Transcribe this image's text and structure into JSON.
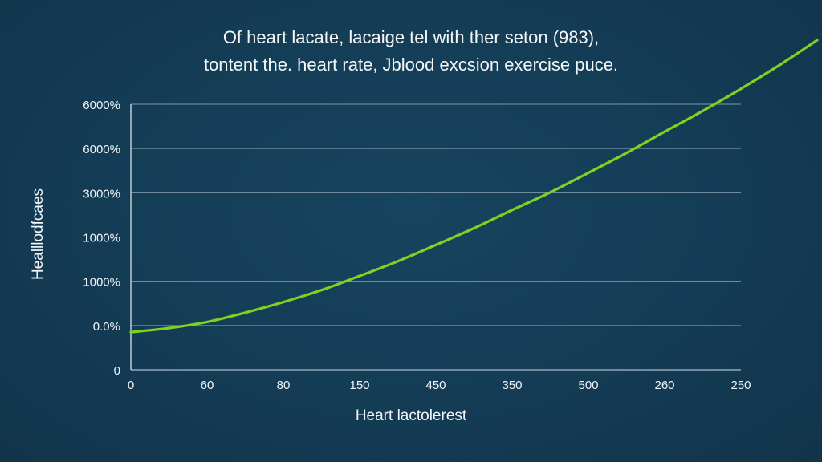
{
  "chart_data": {
    "type": "line",
    "title_lines": [
      "Of heart lacate, lacaige tel with ther seton (983),",
      "tontent the. heart rate, Jblood excsion exercise puce."
    ],
    "xlabel": "Heart lactolerest",
    "ylabel": "Healllodfcaes",
    "x_tick_labels": [
      "0",
      "60",
      "80",
      "150",
      "450",
      "350",
      "500",
      "260",
      "250"
    ],
    "y_tick_labels": [
      "0",
      "0.0%",
      "1000%",
      "1000%",
      "3000%",
      "6000%",
      "6000%"
    ],
    "grid": true,
    "legend": "none",
    "line_color": "#7ed321",
    "series": [
      {
        "x": [
          0,
          0.5,
          1,
          1.5,
          2,
          2.5,
          3,
          3.5,
          4,
          4.5,
          5,
          5.5,
          6,
          6.5,
          7,
          7.5,
          8,
          8.5,
          9
        ],
        "values": [
          0.85,
          0.94,
          1.08,
          1.29,
          1.53,
          1.8,
          2.12,
          2.45,
          2.82,
          3.2,
          3.61,
          4.01,
          4.45,
          4.9,
          5.38,
          5.85,
          6.35,
          6.88,
          7.45
        ]
      }
    ]
  }
}
